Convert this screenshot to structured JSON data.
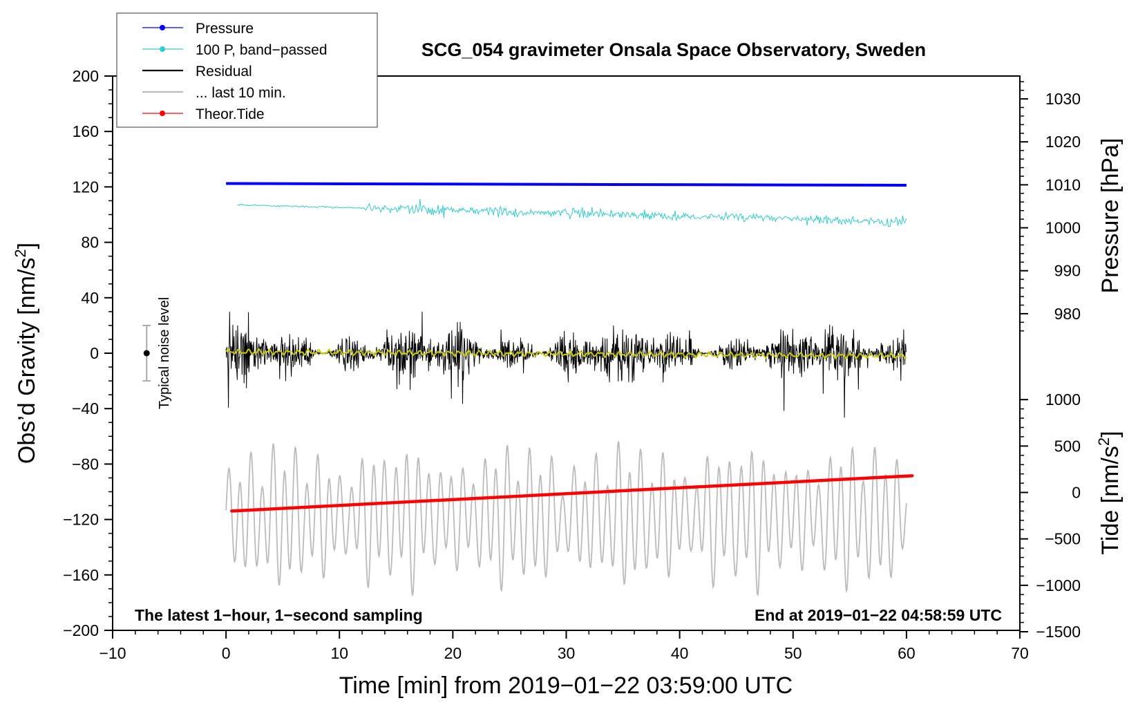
{
  "chart_data": {
    "type": "line",
    "title": "SCG_054 gravimeter Onsala Space Observatory, Sweden",
    "xlabel": "Time [min] from 2019−01−22 03:59:00 UTC",
    "ylabel_left": "Obs’d Gravity [nm/s",
    "ylabel_left_sup": "2",
    "ylabel_left_end": "]",
    "ylabel_right_pressure": "Pressure [hPa]",
    "ylabel_right_tide": "Tide [nm/s",
    "ylabel_right_tide_sup": "2",
    "ylabel_right_tide_end": "]",
    "xlim": [
      -10,
      70
    ],
    "ylim": [
      -200,
      200
    ],
    "x_ticks": [
      -10,
      0,
      10,
      20,
      30,
      40,
      50,
      60,
      70
    ],
    "x_tick_labels": [
      "−10",
      "0",
      "10",
      "20",
      "30",
      "40",
      "50",
      "60",
      "70"
    ],
    "y_ticks": [
      200,
      160,
      120,
      80,
      40,
      0,
      -40,
      -80,
      -120,
      -160,
      -200
    ],
    "y_tick_labels": [
      "200",
      "160",
      "120",
      "80",
      "40",
      "0",
      "−40",
      "−80",
      "−120",
      "−160",
      "−200"
    ],
    "pressure_axis": {
      "ticks": [
        1030,
        1020,
        1010,
        1000,
        990,
        980
      ],
      "tick_labels": [
        "1030",
        "1020",
        "1010",
        "1000",
        "990",
        "980"
      ],
      "gravity_per_tick": [
        183.5,
        152.5,
        121.5,
        90.5,
        59.5,
        28.5
      ]
    },
    "tide_axis": {
      "ticks": [
        1000,
        500,
        0,
        -500,
        -1000,
        -1500
      ],
      "tick_labels": [
        "1000",
        "500",
        "0",
        "−500",
        "−1000",
        "−1500"
      ],
      "gravity_per_tick": [
        -33.5,
        -67,
        -100.5,
        -134,
        -167.5,
        -201
      ]
    },
    "legend": {
      "placement": "top-left",
      "entries": [
        {
          "label": "Pressure",
          "color": "#0000ff",
          "marker": "dot"
        },
        {
          "label": "100 P, band−passed",
          "color": "#33cccc",
          "marker": "dot"
        },
        {
          "label": "Residual",
          "color": "#000000",
          "marker": "none"
        },
        {
          "label": "... last 10 min.",
          "color": "#bbbbbb",
          "marker": "none"
        },
        {
          "label": "Theor.Tide",
          "color": "#ff0000",
          "marker": "dot"
        }
      ]
    },
    "series": [
      {
        "name": "Pressure",
        "color": "#0000ff",
        "x_range": [
          0,
          60
        ],
        "y_start_hpa": 1010.3,
        "y_end_hpa": 1009.9
      },
      {
        "name": "100 P, band−passed",
        "color": "#33cccc",
        "x_range": [
          1,
          60
        ],
        "y_start": 107,
        "y_end": 95,
        "amplitude_max": 15
      },
      {
        "name": "Residual",
        "color": "#000000",
        "x_range": [
          0,
          60
        ],
        "y_center": 0,
        "amplitude_max": 80
      },
      {
        "name": "Residual smoothed",
        "color": "#cccc00",
        "x_range": [
          0,
          60
        ],
        "y_start": 1,
        "y_end": -2
      },
      {
        "name": "... last 10 min.",
        "color": "#bbbbbb",
        "x_range": [
          0,
          60
        ],
        "y_center": -118,
        "amplitude_max": 70
      },
      {
        "name": "Theor.Tide",
        "color": "#ff0000",
        "x_range": [
          0.5,
          60.5
        ],
        "tide_start": -200,
        "tide_end": 180
      }
    ],
    "noise_bar": {
      "x": -7,
      "y": 0,
      "low": -20,
      "high": 20,
      "label": "Typical noise level"
    },
    "annotations": [
      {
        "text": "The latest 1−hour, 1−second sampling",
        "position": "bottom-left"
      },
      {
        "text": "End at 2019−01−22 04:58:59 UTC",
        "position": "bottom-right"
      }
    ]
  }
}
